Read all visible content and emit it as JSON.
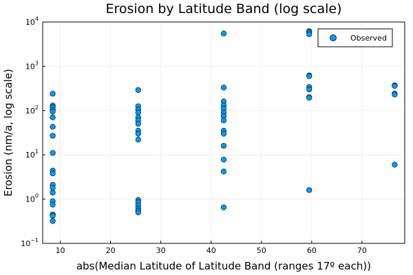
{
  "chart_data": {
    "type": "scatter",
    "title": "Erosion by Latitude Band (log scale)",
    "xlabel": "abs(Median Latitude of Latitude Band (ranges 17º each))",
    "ylabel": "Erosion (nm/a, log scale)",
    "xlim": [
      6.5,
      78.5
    ],
    "ylim": [
      0.1,
      10000
    ],
    "yscale": "log",
    "grid": true,
    "legend_position": "top-right",
    "x_ticks": [
      {
        "value": 10,
        "label": "10"
      },
      {
        "value": 20,
        "label": "20"
      },
      {
        "value": 30,
        "label": "30"
      },
      {
        "value": 40,
        "label": "40"
      },
      {
        "value": 50,
        "label": "50"
      },
      {
        "value": 60,
        "label": "60"
      },
      {
        "value": 70,
        "label": "70"
      }
    ],
    "y_ticks": [
      {
        "value": 0.1,
        "base": "10",
        "exp": "−1"
      },
      {
        "value": 1,
        "base": "10",
        "exp": "0"
      },
      {
        "value": 10,
        "base": "10",
        "exp": "1"
      },
      {
        "value": 100,
        "base": "10",
        "exp": "2"
      },
      {
        "value": 1000,
        "base": "10",
        "exp": "3"
      },
      {
        "value": 10000,
        "base": "10",
        "exp": "4"
      }
    ],
    "series": [
      {
        "name": "Observed",
        "color": "#009af9",
        "points": [
          {
            "x": 8.5,
            "y": 240
          },
          {
            "x": 8.5,
            "y": 130
          },
          {
            "x": 8.5,
            "y": 120
          },
          {
            "x": 8.5,
            "y": 105
          },
          {
            "x": 8.5,
            "y": 95
          },
          {
            "x": 8.5,
            "y": 70
          },
          {
            "x": 8.5,
            "y": 43
          },
          {
            "x": 8.5,
            "y": 27
          },
          {
            "x": 8.5,
            "y": 11
          },
          {
            "x": 8.5,
            "y": 4.4
          },
          {
            "x": 8.5,
            "y": 3.8
          },
          {
            "x": 8.5,
            "y": 2.1
          },
          {
            "x": 8.5,
            "y": 1.8
          },
          {
            "x": 8.5,
            "y": 1.4
          },
          {
            "x": 8.5,
            "y": 0.9
          },
          {
            "x": 8.5,
            "y": 0.75
          },
          {
            "x": 8.5,
            "y": 0.45
          },
          {
            "x": 8.5,
            "y": 0.42
          },
          {
            "x": 8.5,
            "y": 0.32
          },
          {
            "x": 25.5,
            "y": 290
          },
          {
            "x": 25.5,
            "y": 125
          },
          {
            "x": 25.5,
            "y": 105
          },
          {
            "x": 25.5,
            "y": 90
          },
          {
            "x": 25.5,
            "y": 70
          },
          {
            "x": 25.5,
            "y": 60
          },
          {
            "x": 25.5,
            "y": 50
          },
          {
            "x": 25.5,
            "y": 35
          },
          {
            "x": 25.5,
            "y": 30
          },
          {
            "x": 25.5,
            "y": 22
          },
          {
            "x": 25.5,
            "y": 0.95
          },
          {
            "x": 25.5,
            "y": 0.85
          },
          {
            "x": 25.5,
            "y": 0.72
          },
          {
            "x": 25.5,
            "y": 0.62
          },
          {
            "x": 25.5,
            "y": 0.55
          },
          {
            "x": 25.5,
            "y": 0.5
          },
          {
            "x": 42.5,
            "y": 5500
          },
          {
            "x": 42.5,
            "y": 330
          },
          {
            "x": 42.5,
            "y": 160
          },
          {
            "x": 42.5,
            "y": 130
          },
          {
            "x": 42.5,
            "y": 110
          },
          {
            "x": 42.5,
            "y": 90
          },
          {
            "x": 42.5,
            "y": 75
          },
          {
            "x": 42.5,
            "y": 60
          },
          {
            "x": 42.5,
            "y": 35
          },
          {
            "x": 42.5,
            "y": 30
          },
          {
            "x": 42.5,
            "y": 16
          },
          {
            "x": 42.5,
            "y": 7.8
          },
          {
            "x": 42.5,
            "y": 4.2
          },
          {
            "x": 42.5,
            "y": 0.65
          },
          {
            "x": 59.5,
            "y": 6200
          },
          {
            "x": 59.5,
            "y": 5900
          },
          {
            "x": 59.5,
            "y": 5300
          },
          {
            "x": 59.5,
            "y": 620
          },
          {
            "x": 59.5,
            "y": 600
          },
          {
            "x": 59.5,
            "y": 340
          },
          {
            "x": 59.5,
            "y": 300
          },
          {
            "x": 59.5,
            "y": 200
          },
          {
            "x": 59.5,
            "y": 195
          },
          {
            "x": 59.5,
            "y": 1.6
          },
          {
            "x": 76.5,
            "y": 370
          },
          {
            "x": 76.5,
            "y": 360
          },
          {
            "x": 76.5,
            "y": 240
          },
          {
            "x": 76.5,
            "y": 230
          },
          {
            "x": 76.5,
            "y": 6
          }
        ]
      }
    ]
  }
}
